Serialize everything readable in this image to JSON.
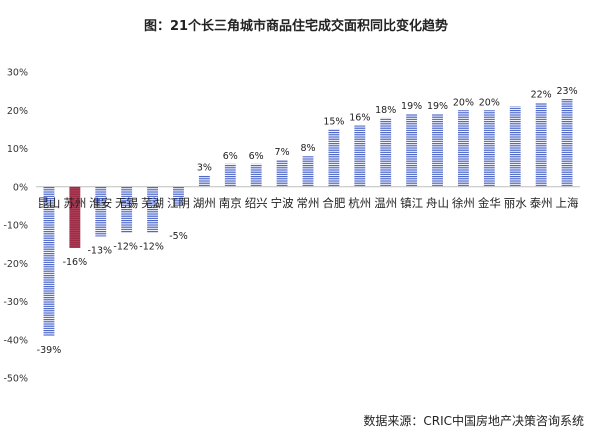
{
  "chart_data": {
    "type": "bar",
    "title": "图：21个长三角城市商品住宅成交面积同比变化趋势",
    "source": "数据来源：CRIC中国房地产决策咨询系统",
    "xlabel": "",
    "ylabel": "",
    "ylim": [
      -50,
      30
    ],
    "yticks": [
      30,
      20,
      10,
      0,
      -10,
      -20,
      -30,
      -40,
      -50
    ],
    "ytick_labels": [
      "30%",
      "20%",
      "10%",
      "0%",
      "-10%",
      "-20%",
      "-30%",
      "-40%",
      "-50%"
    ],
    "categories": [
      "昆山",
      "苏州",
      "淮安",
      "无锡",
      "芜湖",
      "江阴",
      "湖州",
      "南京",
      "绍兴",
      "宁波",
      "常州",
      "合肥",
      "杭州",
      "温州",
      "镇江",
      "舟山",
      "徐州",
      "金华",
      "丽水",
      "泰州",
      "上海"
    ],
    "values": [
      -39,
      -16,
      -13,
      -12,
      -12,
      -5,
      3,
      6,
      6,
      7,
      8,
      15,
      16,
      18,
      19,
      19,
      20,
      20,
      21,
      22,
      23
    ],
    "data_labels": [
      "-39%",
      "-16%",
      "-13%",
      "-12%",
      "-12%",
      "-5%",
      "3%",
      "6%",
      "6%",
      "7%",
      "8%",
      "15%",
      "16%",
      "18%",
      "19%",
      "19%",
      "20%",
      "20%",
      "",
      "22%",
      "23%"
    ],
    "highlight_index": 1,
    "colors": {
      "bar": "#4a64c8",
      "highlight": "#9c2a45",
      "axis": "#bfbfbf"
    },
    "grid": false,
    "legend": "none"
  }
}
